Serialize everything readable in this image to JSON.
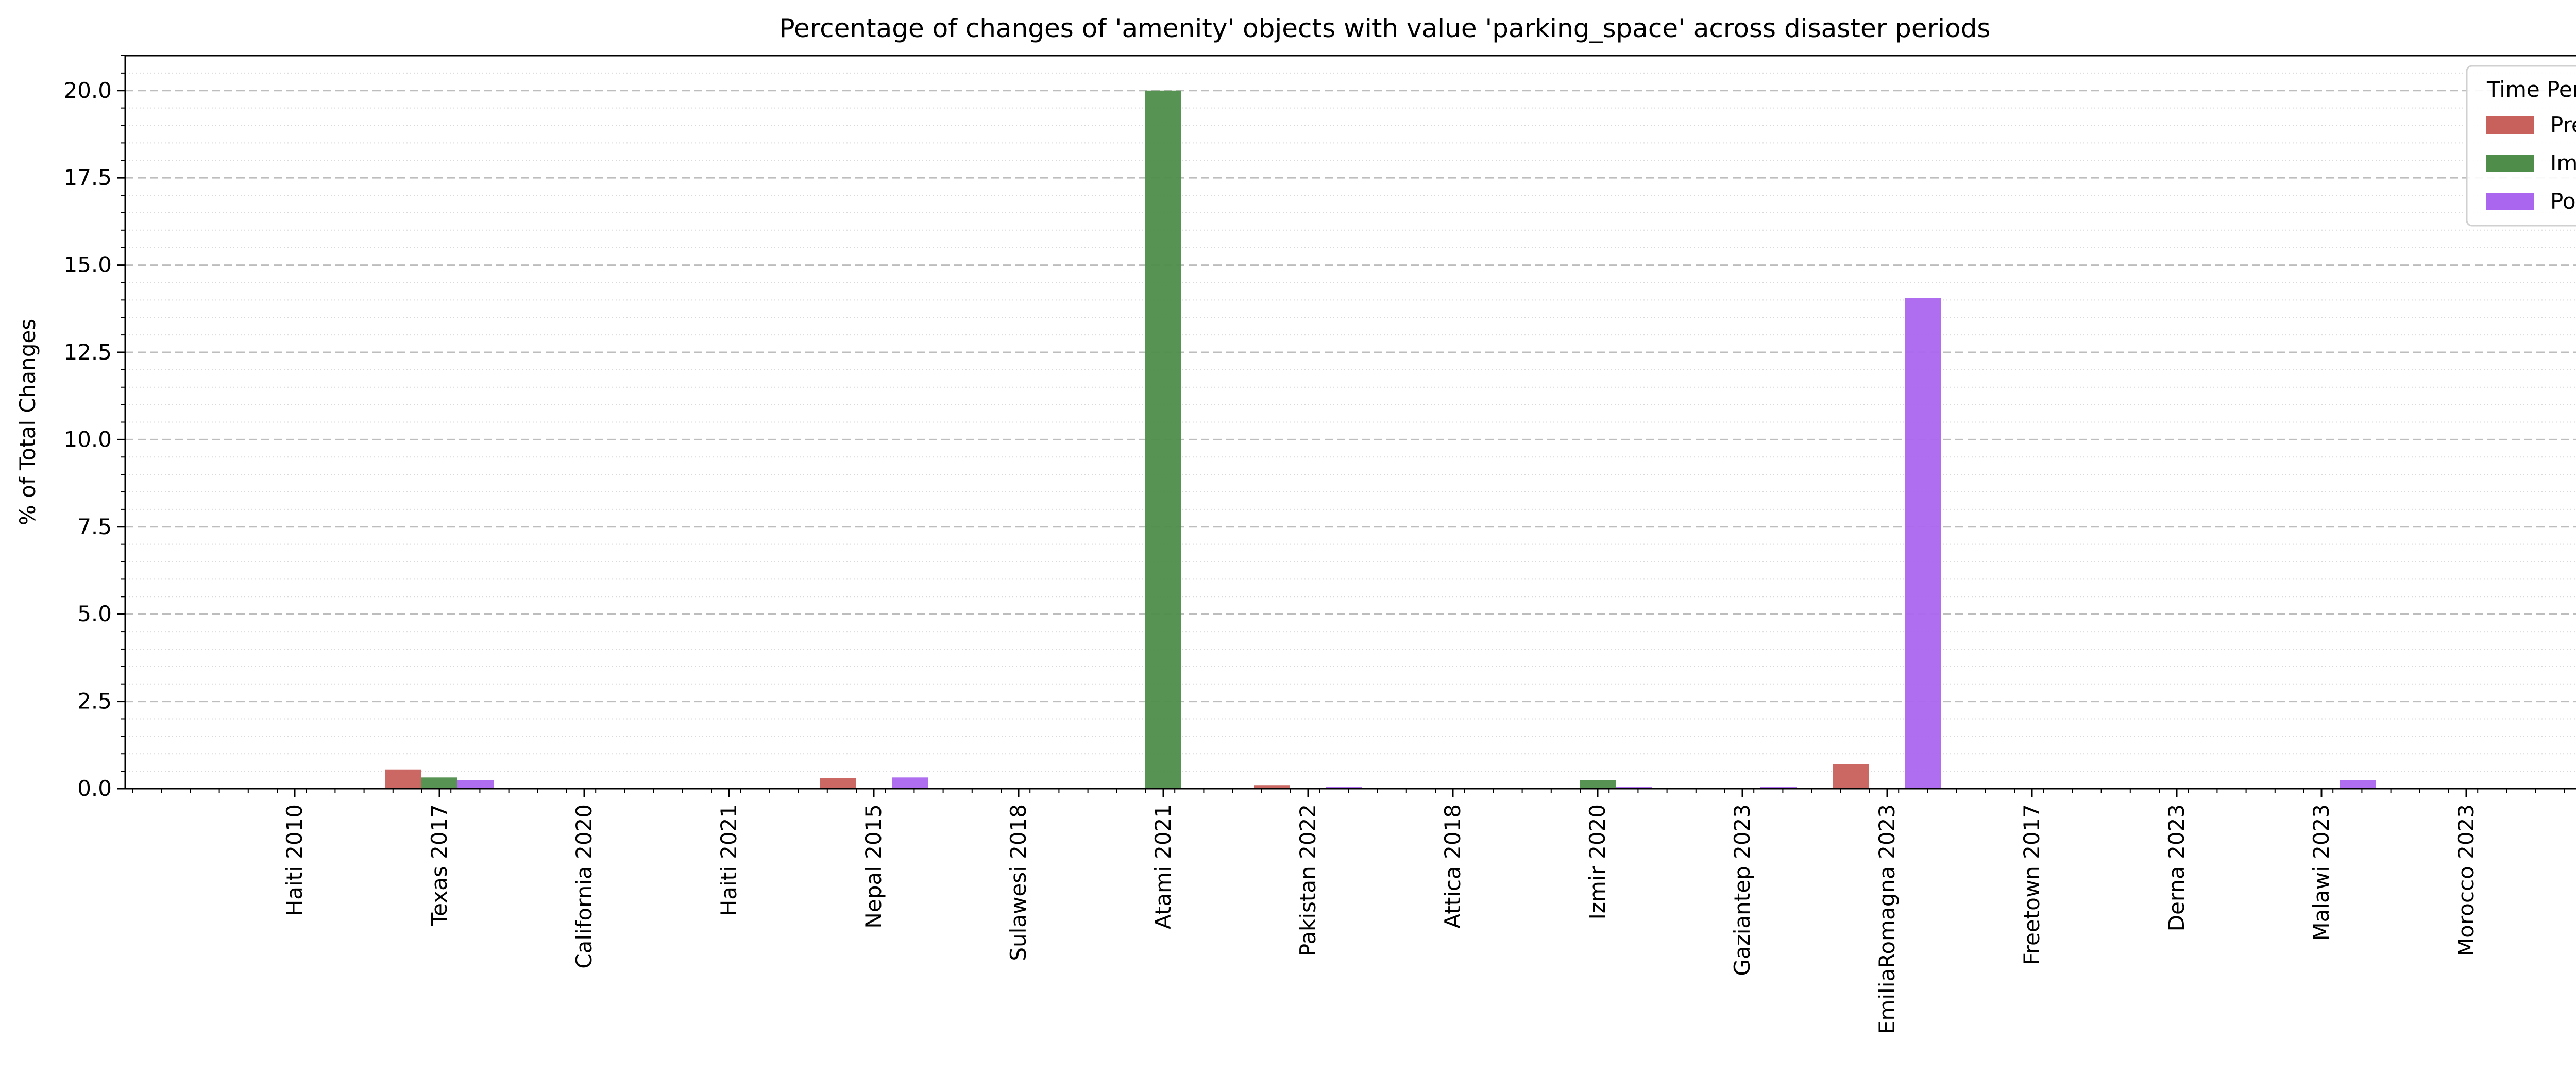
{
  "chart_data": {
    "type": "bar",
    "title": "Percentage of changes of 'amenity' objects with value 'parking_space' across disaster periods",
    "xlabel": "",
    "ylabel": "% of Total Changes",
    "ylim": [
      0,
      21
    ],
    "yticks": [
      0.0,
      2.5,
      5.0,
      7.5,
      10.0,
      12.5,
      15.0,
      17.5,
      20.0
    ],
    "ytick_labels": [
      "0.0",
      "2.5",
      "5.0",
      "7.5",
      "10.0",
      "12.5",
      "15.0",
      "17.5",
      "20.0"
    ],
    "grid": "major dashed, minor dotted (y-axis)",
    "legend": {
      "title": "Time Period",
      "placement": "top-right"
    },
    "categories": [
      "Haiti 2010",
      "Texas 2017",
      "California 2020",
      "Haiti 2021",
      "Nepal 2015",
      "Sulawesi 2018",
      "Atami 2021",
      "Pakistan 2022",
      "Attica 2018",
      "Izmir 2020",
      "Gaziantep 2023",
      "EmiliaRomagna 2023",
      "Freetown 2017",
      "Derna 2023",
      "Malawi 2023",
      "Morocco 2023"
    ],
    "series": [
      {
        "name": "Pre",
        "color": "#c8605c",
        "values": [
          0,
          0.55,
          0,
          0,
          0.3,
          0,
          0,
          0.1,
          0,
          0,
          0,
          0.7,
          0,
          0,
          0,
          0
        ]
      },
      {
        "name": "Imm",
        "color": "#4e8d4a",
        "values": [
          0,
          0.32,
          0,
          0,
          0,
          0,
          20.0,
          0,
          0,
          0.25,
          0,
          0,
          0,
          0,
          0,
          0
        ]
      },
      {
        "name": "Post",
        "color": "#aa66ee",
        "values": [
          0,
          0.25,
          0,
          0,
          0.32,
          0,
          0,
          0.05,
          0,
          0.05,
          0.05,
          14.05,
          0,
          0,
          0.25,
          0
        ]
      }
    ]
  }
}
